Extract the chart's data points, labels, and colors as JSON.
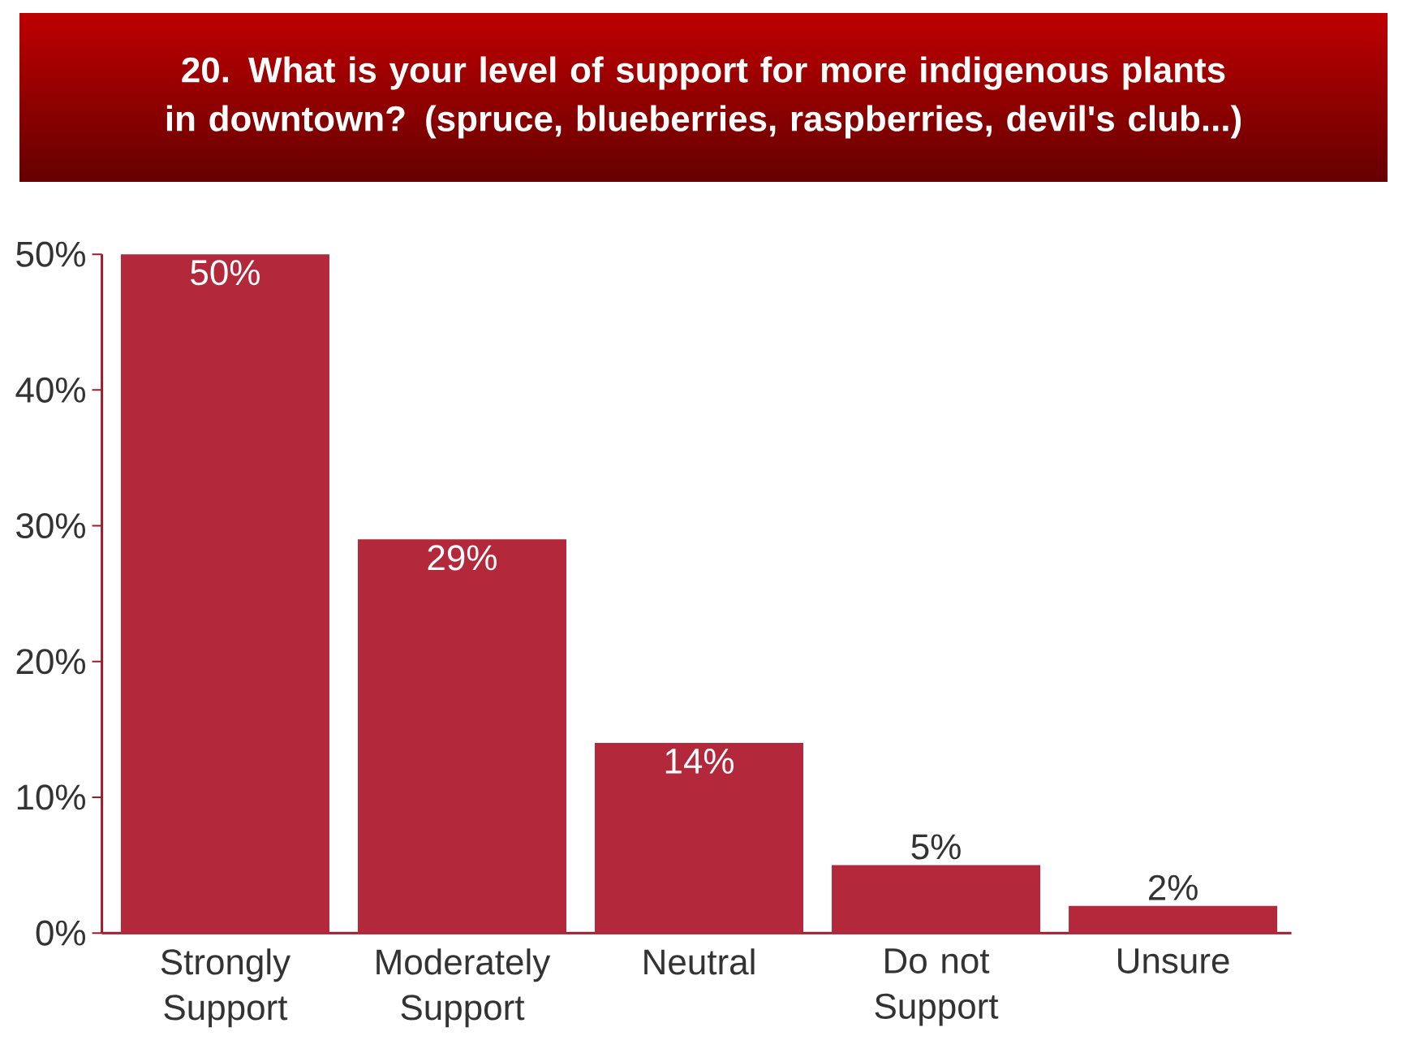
{
  "chart_data": {
    "type": "bar",
    "title": "20. What is your level of support for more indigenous plants in downtown? (spruce, blueberries, raspberries, devil's club...)",
    "categories": [
      "Strongly Support",
      "Moderately Support",
      "Neutral",
      "Do not Support",
      "Unsure"
    ],
    "values": [
      50,
      29,
      14,
      5,
      2
    ],
    "value_labels": [
      "50%",
      "29%",
      "14%",
      "5%",
      "2%"
    ],
    "color": "#b3283a",
    "ylim": [
      0,
      50
    ],
    "yticks": [
      {
        "value": 0,
        "label": "0%"
      },
      {
        "value": 10,
        "label": "10%"
      },
      {
        "value": 20,
        "label": "20%"
      },
      {
        "value": 30,
        "label": "30%"
      },
      {
        "value": 40,
        "label": "40%"
      },
      {
        "value": 50,
        "label": "50%"
      }
    ],
    "grid": false
  }
}
